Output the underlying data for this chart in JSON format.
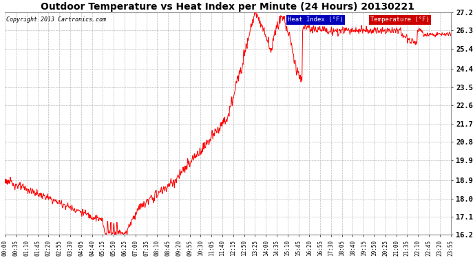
{
  "title": "Outdoor Temperature vs Heat Index per Minute (24 Hours) 20130221",
  "copyright_text": "Copyright 2013 Cartronics.com",
  "ylabel_right_ticks": [
    16.2,
    17.1,
    18.0,
    18.9,
    19.9,
    20.8,
    21.7,
    22.6,
    23.5,
    24.4,
    25.4,
    26.3,
    27.2
  ],
  "ymin": 16.2,
  "ymax": 27.2,
  "line_color_temp": "#ff0000",
  "bg_color": "#ffffff",
  "grid_color": "#bbbbbb",
  "legend_heat_bg": "#0000bb",
  "legend_temp_bg": "#cc0000",
  "legend_heat_label": "Heat Index (°F)",
  "legend_temp_label": "Temperature (°F)",
  "xtick_labels": [
    "00:00",
    "00:35",
    "01:10",
    "01:45",
    "02:20",
    "02:55",
    "03:30",
    "04:05",
    "04:40",
    "05:15",
    "05:50",
    "06:25",
    "07:00",
    "07:35",
    "08:10",
    "08:45",
    "09:20",
    "09:55",
    "10:30",
    "11:05",
    "11:40",
    "12:15",
    "12:50",
    "13:25",
    "14:00",
    "14:35",
    "15:10",
    "15:45",
    "16:20",
    "16:55",
    "17:30",
    "18:05",
    "18:40",
    "19:15",
    "19:50",
    "20:25",
    "21:00",
    "21:35",
    "22:10",
    "22:45",
    "23:20",
    "23:55"
  ]
}
